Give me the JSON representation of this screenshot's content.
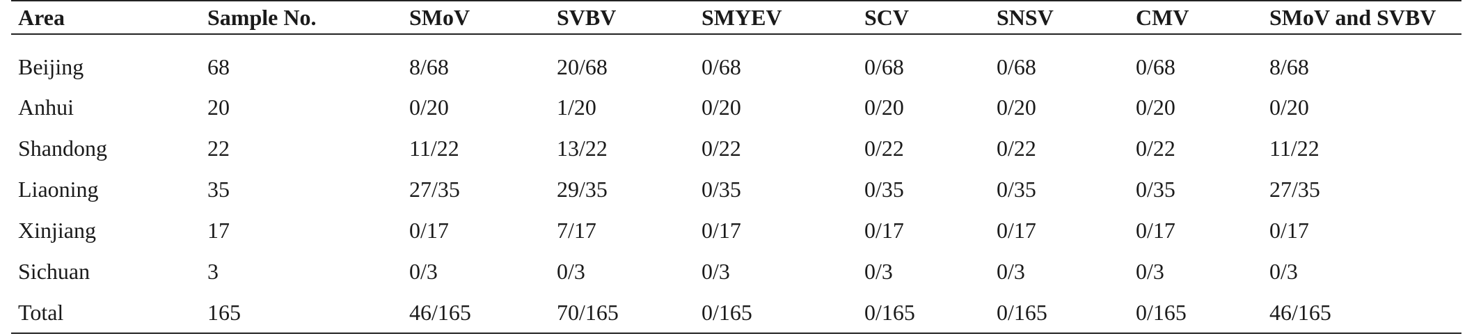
{
  "table": {
    "headers": [
      "Area",
      "Sample No.",
      "SMoV",
      "SVBV",
      "SMYEV",
      "SCV",
      "SNSV",
      "CMV",
      "SMoV and SVBV"
    ],
    "rows": [
      [
        "Beijing",
        "68",
        "8/68",
        "20/68",
        "0/68",
        "0/68",
        "0/68",
        "0/68",
        "8/68"
      ],
      [
        "Anhui",
        "20",
        "0/20",
        "1/20",
        "0/20",
        "0/20",
        "0/20",
        "0/20",
        "0/20"
      ],
      [
        "Shandong",
        "22",
        "11/22",
        "13/22",
        "0/22",
        "0/22",
        "0/22",
        "0/22",
        "11/22"
      ],
      [
        "Liaoning",
        "35",
        "27/35",
        "29/35",
        "0/35",
        "0/35",
        "0/35",
        "0/35",
        "27/35"
      ],
      [
        "Xinjiang",
        "17",
        "0/17",
        "7/17",
        "0/17",
        "0/17",
        "0/17",
        "0/17",
        "0/17"
      ],
      [
        "Sichuan",
        "3",
        "0/3",
        "0/3",
        "0/3",
        "0/3",
        "0/3",
        "0/3",
        "0/3"
      ],
      [
        "Total",
        "165",
        "46/165",
        "70/165",
        "0/165",
        "0/165",
        "0/165",
        "0/165",
        "46/165"
      ]
    ]
  }
}
